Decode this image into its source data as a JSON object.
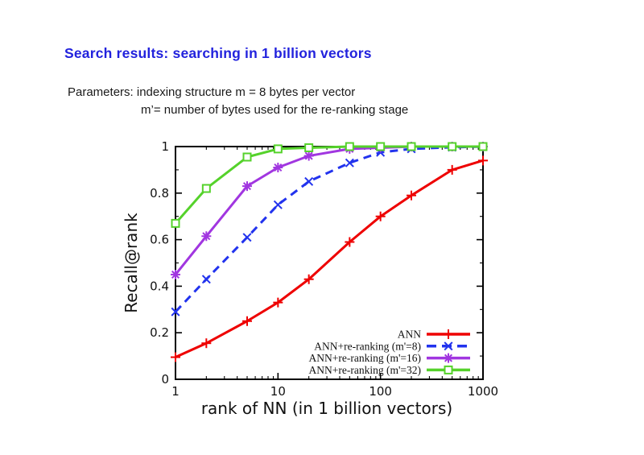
{
  "slide": {
    "title": "Search results: searching in 1 billion vectors",
    "title_color": "#2222dd",
    "param_line1": "Parameters: indexing structure m = 8 bytes per vector",
    "param_line2": "m’= number of bytes used for the re-ranking stage"
  },
  "chart_data": {
    "type": "line",
    "title": "",
    "xlabel": "rank of NN (in 1 billion vectors)",
    "ylabel": "Recall@rank",
    "x_scale": "log",
    "xlim": [
      1,
      1000
    ],
    "ylim": [
      0,
      1
    ],
    "x_major_ticks": [
      1,
      10,
      100,
      1000
    ],
    "y_major_ticks": [
      0,
      0.2,
      0.4,
      0.6,
      0.8,
      1
    ],
    "y_minor_step": 0.1,
    "grid": false,
    "legend_position": "inside-bottom-right",
    "axis_color": "#000000",
    "x": [
      1,
      2,
      5,
      10,
      20,
      50,
      100,
      200,
      500,
      1000
    ],
    "series": [
      {
        "name": "ANN",
        "color": "#ee0000",
        "marker": "plus",
        "dash": "solid",
        "values": [
          0.095,
          0.155,
          0.25,
          0.33,
          0.43,
          0.59,
          0.7,
          0.79,
          0.9,
          0.94
        ]
      },
      {
        "name": "ANN+re-ranking (m'=8)",
        "color": "#2233ee",
        "marker": "x",
        "dash": "dashed",
        "values": [
          0.29,
          0.43,
          0.61,
          0.75,
          0.85,
          0.93,
          0.975,
          0.99,
          0.997,
          1.0
        ]
      },
      {
        "name": "ANN+re-ranking (m'=16)",
        "color": "#a136e0",
        "marker": "asterisk",
        "dash": "solid",
        "values": [
          0.45,
          0.615,
          0.83,
          0.91,
          0.96,
          0.99,
          0.995,
          1.0,
          1.0,
          1.0
        ]
      },
      {
        "name": "ANN+re-ranking (m'=32)",
        "color": "#55d22b",
        "marker": "square",
        "dash": "solid",
        "values": [
          0.67,
          0.82,
          0.955,
          0.99,
          0.995,
          1.0,
          1.0,
          1.0,
          1.0,
          1.0
        ]
      }
    ]
  }
}
